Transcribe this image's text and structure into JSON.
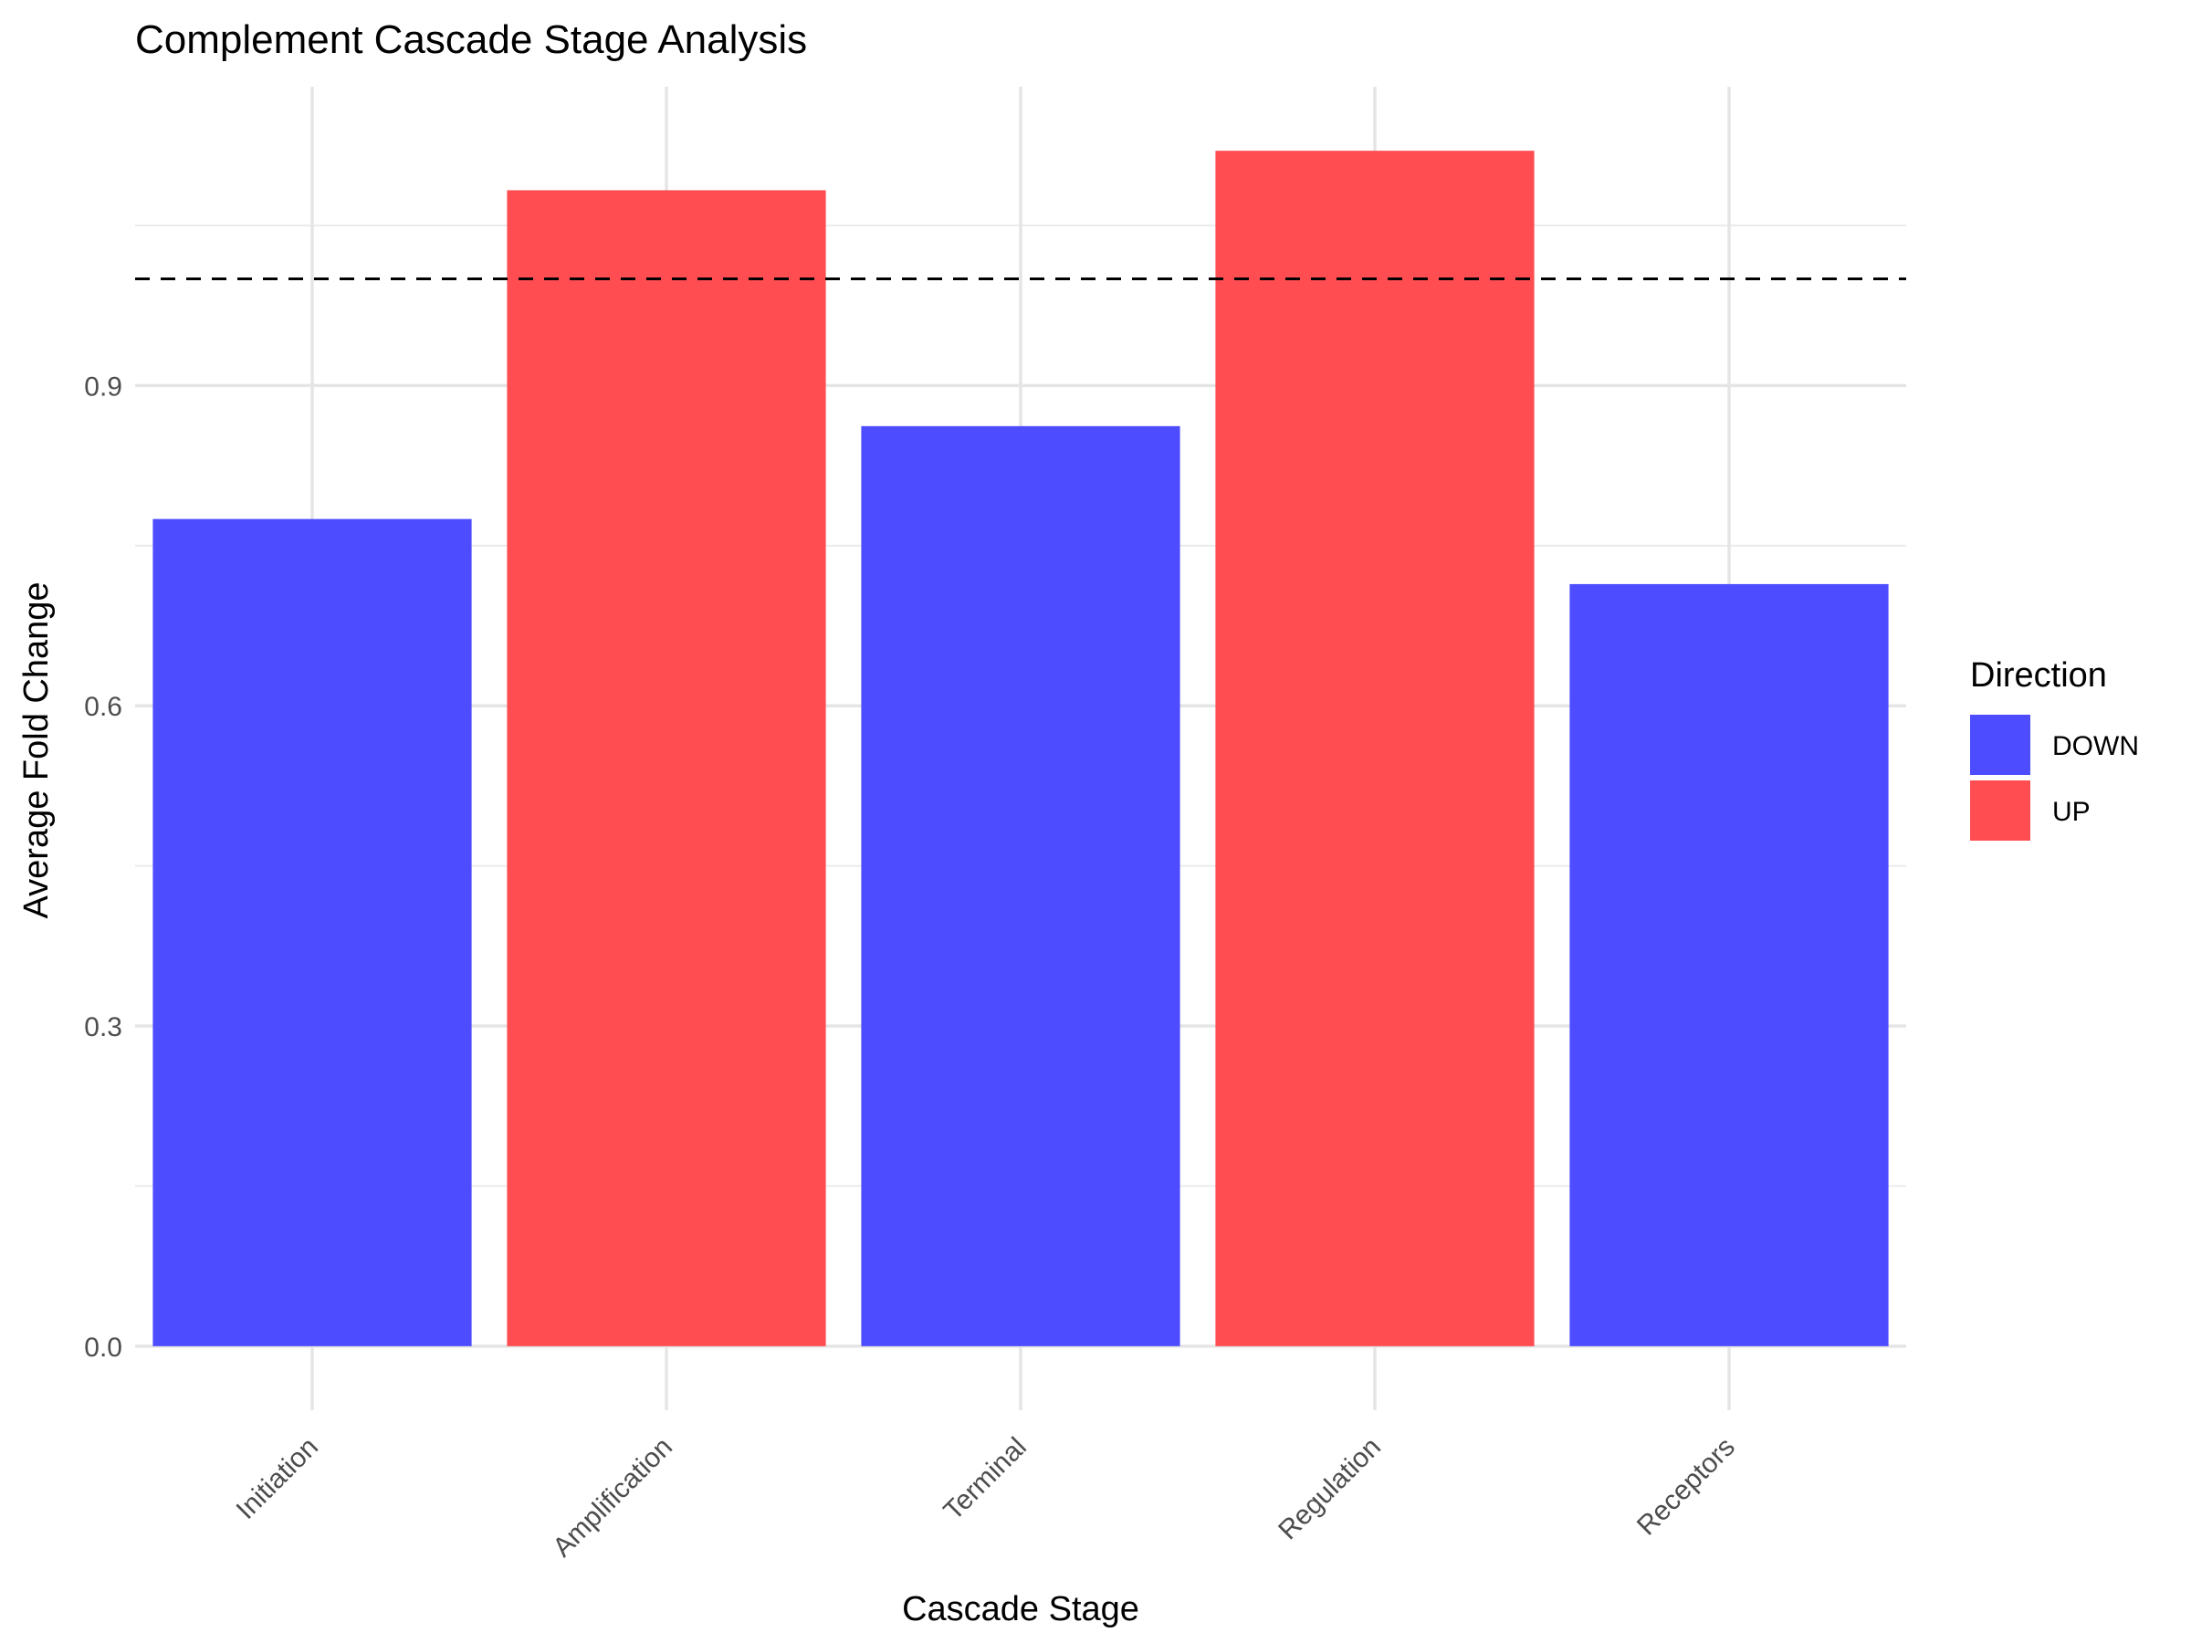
{
  "chart_data": {
    "type": "bar",
    "title": "Complement Cascade Stage Analysis",
    "xlabel": "Cascade Stage",
    "ylabel": "Average Fold Change",
    "categories": [
      "Initiation",
      "Amplification",
      "Terminal",
      "Regulation",
      "Receptors"
    ],
    "values": [
      0.775,
      1.083,
      0.862,
      1.12,
      0.714
    ],
    "direction": [
      "DOWN",
      "UP",
      "DOWN",
      "UP",
      "DOWN"
    ],
    "ylim": [
      -0.06,
      1.18
    ],
    "yticks": [
      0.0,
      0.3,
      0.6,
      0.9
    ],
    "reference_line": 1.0,
    "grid": true,
    "legend": {
      "title": "Direction",
      "placement": "right",
      "entries": [
        {
          "label": "DOWN",
          "color": "#4d4dff"
        },
        {
          "label": "UP",
          "color": "#ff4d52"
        }
      ]
    }
  }
}
